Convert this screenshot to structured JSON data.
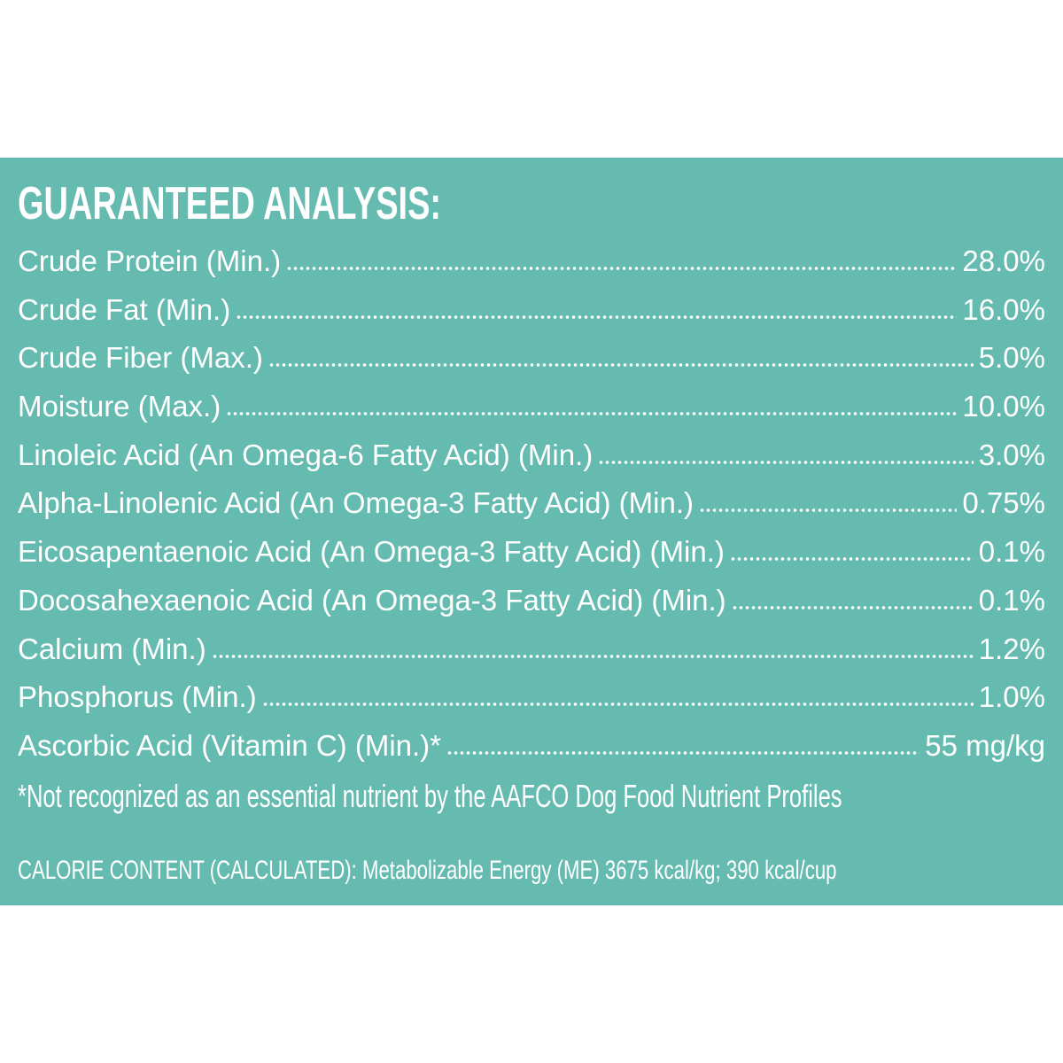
{
  "header": {
    "title": "GUARANTEED ANALYSIS:"
  },
  "rows": [
    [
      "Crude Protein (Min.)",
      "28.0%"
    ],
    [
      "Crude Fat (Min.)",
      "16.0%"
    ],
    [
      "Crude Fiber (Max.)",
      "5.0%"
    ],
    [
      "Moisture (Max.)",
      "10.0%"
    ],
    [
      "Linoleic Acid (An Omega-6 Fatty Acid) (Min.)",
      "3.0%"
    ],
    [
      "Alpha-Linolenic Acid (An Omega-3 Fatty Acid) (Min.)",
      "0.75%"
    ],
    [
      "Eicosapentaenoic Acid (An Omega-3 Fatty Acid) (Min.)",
      "0.1%"
    ],
    [
      "Docosahexaenoic Acid (An Omega-3 Fatty Acid) (Min.)",
      "0.1%"
    ],
    [
      "Calcium (Min.)",
      "1.2%"
    ],
    [
      "Phosphorus (Min.)",
      "1.0%"
    ],
    [
      "Ascorbic Acid (Vitamin C) (Min.)*",
      "55 mg/kg"
    ]
  ],
  "footnote": "*Not recognized as an essential nutrient by the AAFCO Dog Food Nutrient Profiles",
  "calorie": "CALORIE CONTENT (CALCULATED): Metabolizable Energy (ME) 3675 kcal/kg; 390 kcal/cup"
}
